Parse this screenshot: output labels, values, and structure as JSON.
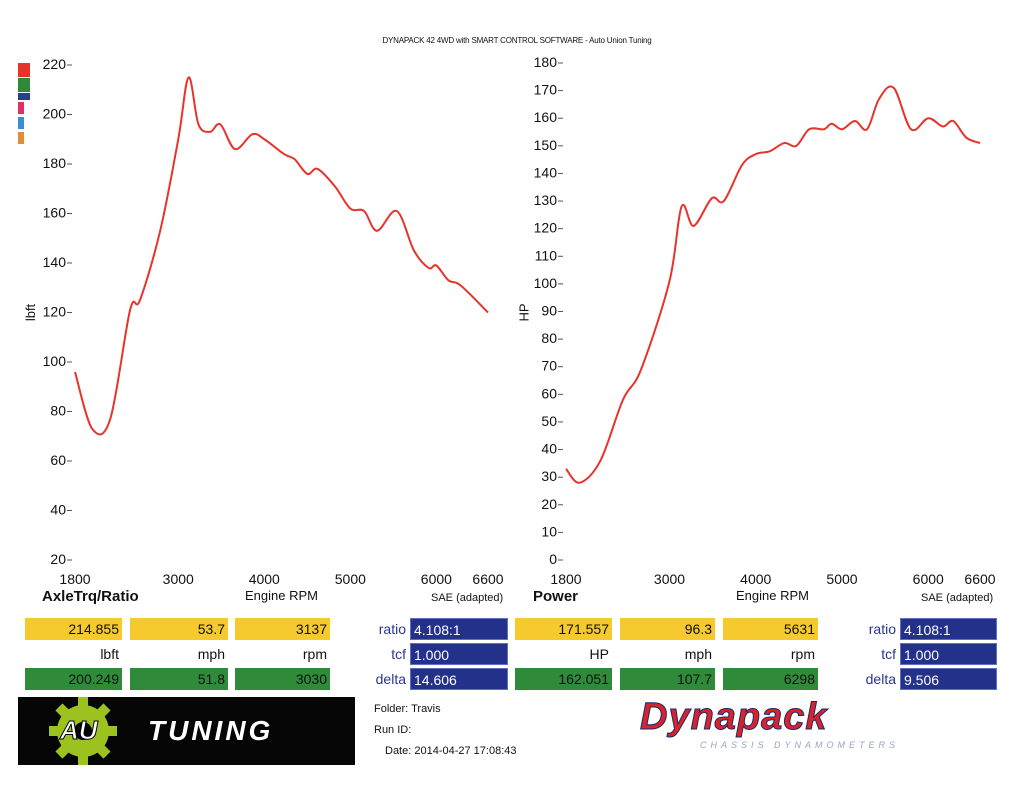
{
  "header": {
    "title": "DYNAPACK 42 4WD with SMART CONTROL SOFTWARE - Auto Union Tuning"
  },
  "legend_swatches": [
    "#e8332a",
    "#2f8a3a",
    "#23428a",
    "#e0306a",
    "#3a8ed8",
    "#e88a3a"
  ],
  "chart_data": [
    {
      "type": "line",
      "title": "AxleTrq/Ratio",
      "xlabel": "Engine RPM",
      "ylabel": "lbft",
      "note": "SAE (adapted)",
      "xlim": [
        1800,
        6600
      ],
      "ylim": [
        20,
        220
      ],
      "xticks": [
        1800,
        3000,
        4000,
        5000,
        6000,
        6600
      ],
      "yticks": [
        20,
        40,
        60,
        80,
        100,
        120,
        140,
        160,
        180,
        200,
        220
      ],
      "series": [
        {
          "color": "#e8332a",
          "x": [
            1800,
            2000,
            2210,
            2440,
            2555,
            2790,
            3000,
            3120,
            3235,
            3370,
            3490,
            3660,
            3860,
            4000,
            4230,
            4350,
            4500,
            4620,
            4820,
            5000,
            5160,
            5310,
            5540,
            5740,
            5910,
            6000,
            6140,
            6280,
            6600
          ],
          "y": [
            96,
            73,
            77,
            121,
            125,
            153,
            190,
            215,
            196,
            193,
            196,
            186,
            192,
            190,
            184,
            182,
            176,
            178,
            171,
            162,
            161,
            153,
            161,
            145,
            138,
            139,
            133,
            131,
            120
          ]
        }
      ]
    },
    {
      "type": "line",
      "title": "Power",
      "xlabel": "Engine RPM",
      "ylabel": "HP",
      "note": "SAE (adapted)",
      "xlim": [
        1800,
        6600
      ],
      "ylim": [
        0,
        180
      ],
      "xticks": [
        1800,
        3000,
        4000,
        5000,
        6000,
        6600
      ],
      "yticks": [
        0,
        10,
        20,
        30,
        40,
        50,
        60,
        70,
        80,
        90,
        100,
        110,
        120,
        130,
        140,
        150,
        160,
        170,
        180
      ],
      "series": [
        {
          "color": "#e8332a",
          "x": [
            1800,
            1960,
            2200,
            2460,
            2670,
            3000,
            3140,
            3280,
            3490,
            3630,
            3840,
            4000,
            4160,
            4330,
            4470,
            4620,
            4790,
            4880,
            5000,
            5150,
            5290,
            5430,
            5600,
            5800,
            6000,
            6170,
            6290,
            6440,
            6600
          ],
          "y": [
            33,
            28,
            36,
            58,
            69,
            101,
            128,
            121,
            131,
            130,
            143,
            147,
            148,
            151,
            150,
            156,
            156,
            158,
            156,
            159,
            156,
            167,
            171,
            156,
            160,
            157,
            159,
            153,
            151
          ]
        }
      ]
    }
  ],
  "left_table": {
    "max": [
      "214.855",
      "53.7",
      "3137"
    ],
    "units": [
      "lbft",
      "mph",
      "rpm"
    ],
    "min": [
      "200.249",
      "51.8",
      "3030"
    ],
    "ratio_label": "ratio",
    "ratio": "4.108:1",
    "tcf_label": "tcf",
    "tcf": "1.000",
    "delta_label": "delta",
    "delta": "14.606"
  },
  "right_table": {
    "max": [
      "171.557",
      "96.3",
      "5631"
    ],
    "units": [
      "HP",
      "mph",
      "rpm"
    ],
    "min": [
      "162.051",
      "107.7",
      "6298"
    ],
    "ratio_label": "ratio",
    "ratio": "4.108:1",
    "tcf_label": "tcf",
    "tcf": "1.000",
    "delta_label": "delta",
    "delta": "9.506"
  },
  "footer": {
    "logo_text": "AU",
    "logo_word": "TUNING",
    "folder": "Folder: Travis",
    "run_id": "Run ID:",
    "date": "Date: 2014-04-27 17:08:43",
    "brand": "Dynapack",
    "brand_sub": "CHASSIS DYNAMOMETERS"
  }
}
